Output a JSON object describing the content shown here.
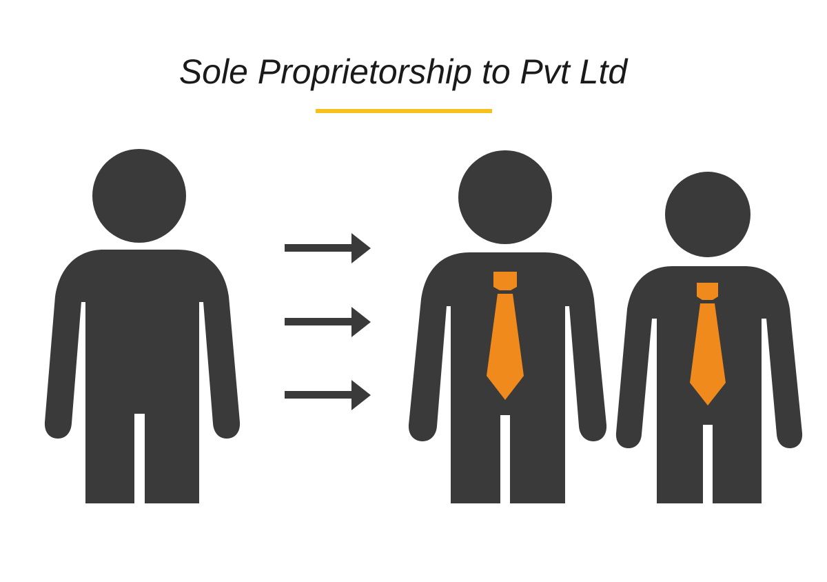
{
  "title": "Sole Proprietorship to Pvt Ltd",
  "colors": {
    "figure": "#3a3a3a",
    "tie": "#f08a1c",
    "underline": "#f5c11a",
    "arrow": "#3a3a3a"
  },
  "icons": {
    "sole_figure": "person-icon",
    "partner_figures": [
      "businessman-with-tie-icon",
      "businessman-with-tie-icon"
    ],
    "arrows": [
      "right-arrow-icon",
      "right-arrow-icon",
      "right-arrow-icon"
    ]
  }
}
